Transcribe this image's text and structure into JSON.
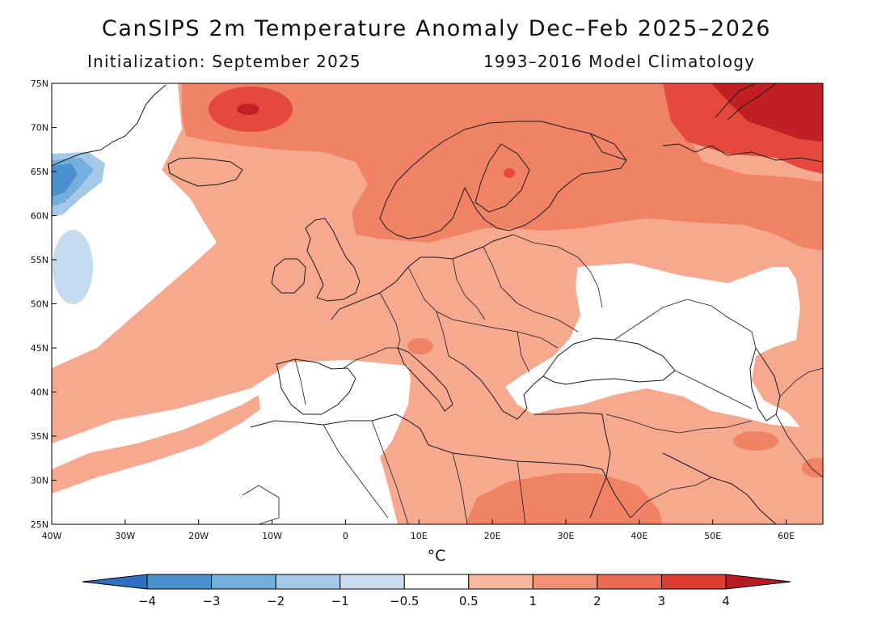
{
  "title": "CanSIPS 2m Temperature Anomaly Dec–Feb 2025–2026",
  "subtitle_left": "Initialization: September 2025",
  "subtitle_right": "1993–2016 Model Climatology",
  "unit_label": "°C",
  "map": {
    "lon_range": [
      -40,
      65
    ],
    "lat_range": [
      25,
      75
    ],
    "lat_ticks": [
      "25N",
      "30N",
      "35N",
      "40N",
      "45N",
      "50N",
      "55N",
      "60N",
      "65N",
      "70N",
      "75N"
    ],
    "lon_ticks": [
      "40W",
      "30W",
      "20W",
      "10W",
      "0",
      "10E",
      "20E",
      "30E",
      "40E",
      "50E",
      "60E"
    ],
    "regions": [
      {
        "name": "cold-anomaly-greenland",
        "color": "#3f8fd1",
        "level": "-2 to -1"
      },
      {
        "name": "cool-anomaly-atlantic",
        "color": "#c5dcef",
        "level": "-1 to -0.5"
      },
      {
        "name": "neutral-iberia-north-africa",
        "color": "#ffffff",
        "level": "-0.5 to 0.5"
      },
      {
        "name": "neutral-black-sea-ukraine",
        "color": "#ffffff",
        "level": "-0.5 to 0.5"
      },
      {
        "name": "warm-europe",
        "color": "#f7a990",
        "level": "0.5 to 1"
      },
      {
        "name": "warm-scandinavia",
        "color": "#f08266",
        "level": "1 to 2"
      },
      {
        "name": "hot-svalbard-barents",
        "color": "#e34a3d",
        "level": "2 to 3"
      },
      {
        "name": "very-hot-novaya-zemlya",
        "color": "#c01f23",
        "level": "3 to 4"
      }
    ]
  },
  "colorbar": {
    "colors": [
      "#2d6fc0",
      "#4a8fce",
      "#74aedd",
      "#a3c8e8",
      "#c9ddf0",
      "#ffffff",
      "#f9b7a0",
      "#f39174",
      "#ea6b51",
      "#dc3b30",
      "#b81a22"
    ],
    "labels": [
      "−4",
      "−3",
      "−2",
      "−1",
      "−0.5",
      "0.5",
      "1",
      "2",
      "3",
      "4"
    ]
  }
}
